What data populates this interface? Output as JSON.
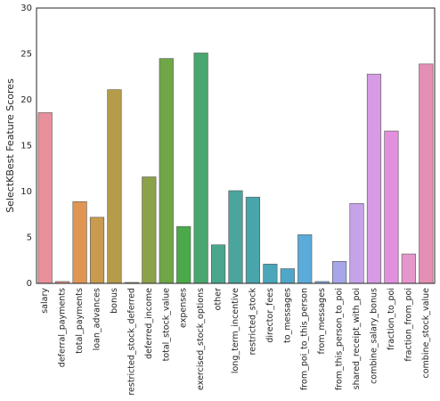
{
  "chart_data": {
    "type": "bar",
    "title": "",
    "xlabel": "",
    "ylabel": "SelectKBest Feature Scores",
    "ylim": [
      0,
      30
    ],
    "yticks": [
      0,
      5,
      10,
      15,
      20,
      25,
      30
    ],
    "grid": false,
    "legend": "none",
    "categories": [
      "salary",
      "deferral_payments",
      "total_payments",
      "loan_advances",
      "bonus",
      "restricted_stock_deferred",
      "deferred_income",
      "total_stock_value",
      "expenses",
      "exercised_stock_options",
      "other",
      "long_term_incentive",
      "restricted_stock",
      "director_fees",
      "to_messages",
      "from_poi_to_this_person",
      "from_messages",
      "from_this_person_to_poi",
      "shared_receipt_with_poi",
      "combine_salary_bonus",
      "fraction_to_poi",
      "fraction_from_poi",
      "combine_stock_value"
    ],
    "values": [
      18.6,
      0.2,
      8.9,
      7.2,
      21.1,
      0.1,
      11.6,
      24.5,
      6.2,
      25.1,
      4.2,
      10.1,
      9.4,
      2.1,
      1.6,
      5.3,
      0.2,
      2.4,
      8.7,
      22.8,
      16.6,
      3.2,
      23.9
    ],
    "colors": [
      "#e8909b",
      "#e5948c",
      "#e09553",
      "#c99b50",
      "#b69b4a",
      "#a19f48",
      "#8ba248",
      "#6ea648",
      "#4aaa4a",
      "#4aa66f",
      "#4aa68c",
      "#49a59d",
      "#48a5ab",
      "#4aa6b8",
      "#4ea7c9",
      "#5aabd9",
      "#82a8e3",
      "#a6a6e8",
      "#c6a2e8",
      "#d79be6",
      "#e38fde",
      "#e596cb",
      "#e58fb4"
    ]
  }
}
